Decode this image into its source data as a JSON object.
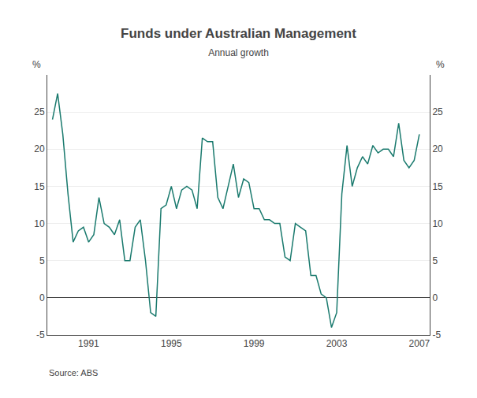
{
  "chart_data": {
    "type": "line",
    "title": "Funds under Australian Management",
    "subtitle": "Annual growth",
    "ylabel": "%",
    "y2label": "%",
    "annotations": [
      "Source: ABS"
    ],
    "color": "#1a7a6e",
    "grid": true,
    "xlim": [
      1989.0,
      2007.5
    ],
    "xticks": [
      1991,
      1995,
      1999,
      2003,
      2007
    ],
    "ylim": [
      -5,
      30
    ],
    "yticks": [
      -5,
      0,
      5,
      10,
      15,
      20,
      25
    ],
    "y2lim": [
      -5,
      30
    ],
    "y2ticks": [
      -5,
      0,
      5,
      10,
      15,
      20,
      25
    ],
    "x": [
      1989.25,
      1989.5,
      1989.75,
      1990.0,
      1990.25,
      1990.5,
      1990.75,
      1991.0,
      1991.25,
      1991.5,
      1991.75,
      1992.0,
      1992.25,
      1992.5,
      1992.75,
      1993.0,
      1993.25,
      1993.5,
      1993.75,
      1994.0,
      1994.25,
      1994.5,
      1994.75,
      1995.0,
      1995.25,
      1995.5,
      1995.75,
      1996.0,
      1996.25,
      1996.5,
      1996.75,
      1997.0,
      1997.25,
      1997.5,
      1997.75,
      1998.0,
      1998.25,
      1998.5,
      1998.75,
      1999.0,
      1999.25,
      1999.5,
      1999.75,
      2000.0,
      2000.25,
      2000.5,
      2000.75,
      2001.0,
      2001.25,
      2001.5,
      2001.75,
      2002.0,
      2002.25,
      2002.5,
      2002.75,
      2003.0,
      2003.25,
      2003.5,
      2003.75,
      2004.0,
      2004.25,
      2004.5,
      2004.75,
      2005.0,
      2005.25,
      2005.5,
      2005.75,
      2006.0,
      2006.25,
      2006.5,
      2006.75,
      2007.0
    ],
    "values": [
      24.0,
      27.5,
      22.0,
      14.0,
      7.5,
      9.0,
      9.5,
      7.5,
      8.5,
      13.5,
      10.0,
      9.5,
      8.5,
      10.5,
      5.0,
      5.0,
      9.5,
      10.5,
      5.0,
      -2.0,
      -2.5,
      12.0,
      12.5,
      15.0,
      12.0,
      14.5,
      15.0,
      14.5,
      12.0,
      21.5,
      21.0,
      21.0,
      13.5,
      12.0,
      15.0,
      18.0,
      13.5,
      16.0,
      15.5,
      12.0,
      12.0,
      10.5,
      10.5,
      10.0,
      10.0,
      5.5,
      5.0,
      10.0,
      9.5,
      9.0,
      3.0,
      3.0,
      0.5,
      0.0,
      -4.0,
      -2.0,
      14.0,
      20.5,
      15.0,
      17.5,
      19.0,
      18.0,
      20.5,
      19.5,
      20.0,
      20.0,
      19.0,
      23.5,
      18.5,
      17.5,
      18.5,
      22.0
    ]
  }
}
